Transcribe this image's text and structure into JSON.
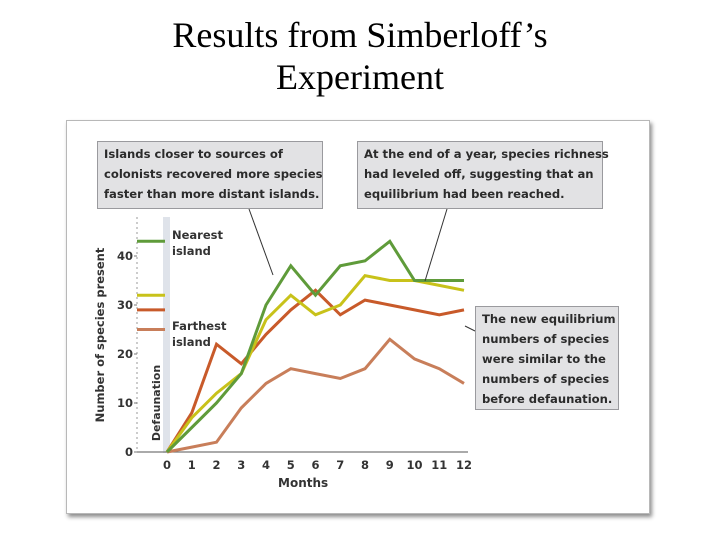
{
  "slide": {
    "title_line1": "Results from Simberloff’s",
    "title_line2": "Experiment"
  },
  "callouts": {
    "top_left": [
      "Islands closer to sources of",
      "colonists recovered more species",
      "faster than more distant islands."
    ],
    "top_right": [
      "At the end of a year, species richness",
      "had leveled off, suggesting that an",
      "equilibrium had been reached."
    ],
    "right": [
      "The new equilibrium",
      "numbers of species",
      "were similar to the",
      "numbers of species",
      "before defaunation."
    ]
  },
  "chart_data": {
    "type": "line",
    "xlabel": "Months",
    "ylabel": "Number of species present",
    "defaunation_label": "Defaunation",
    "x": [
      0,
      1,
      2,
      3,
      4,
      5,
      6,
      7,
      8,
      9,
      10,
      11,
      12
    ],
    "xlim": [
      0,
      12
    ],
    "ylim": [
      0,
      45
    ],
    "y_ticks": [
      0,
      10,
      20,
      30,
      40
    ],
    "x_ticks": [
      "0",
      "1",
      "2",
      "3",
      "4",
      "5",
      "6",
      "7",
      "8",
      "9",
      "10",
      "11",
      "12"
    ],
    "grid": false,
    "series_labels": {
      "nearest": [
        "Nearest",
        "island"
      ],
      "farthest": [
        "Farthest",
        "island"
      ]
    },
    "series": [
      {
        "key": "nearest",
        "color": "#5f9b3a",
        "pre_value": 43,
        "values": [
          0,
          5,
          10,
          16,
          30,
          38,
          32,
          38,
          39,
          43,
          35,
          35,
          35
        ],
        "note": "jump 7–8 ≈ 38.5→39, peak at ~8.8 ≈ 45.5"
      },
      {
        "key": "mid1",
        "color": "#c8c21a",
        "pre_value": 32,
        "values": [
          0,
          7,
          12,
          16,
          27,
          32,
          28,
          30,
          36,
          35,
          35,
          34,
          33
        ]
      },
      {
        "key": "mid2",
        "color": "#c85a2a",
        "pre_value": 29,
        "values": [
          0,
          8,
          22,
          18,
          24,
          29,
          33,
          28,
          31,
          30,
          29,
          28,
          29
        ]
      },
      {
        "key": "farthest",
        "color": "#c87e5a",
        "pre_value": 25,
        "values": [
          0,
          1,
          2,
          9,
          14,
          17,
          16,
          15,
          17,
          23,
          19,
          17,
          14
        ]
      }
    ]
  }
}
